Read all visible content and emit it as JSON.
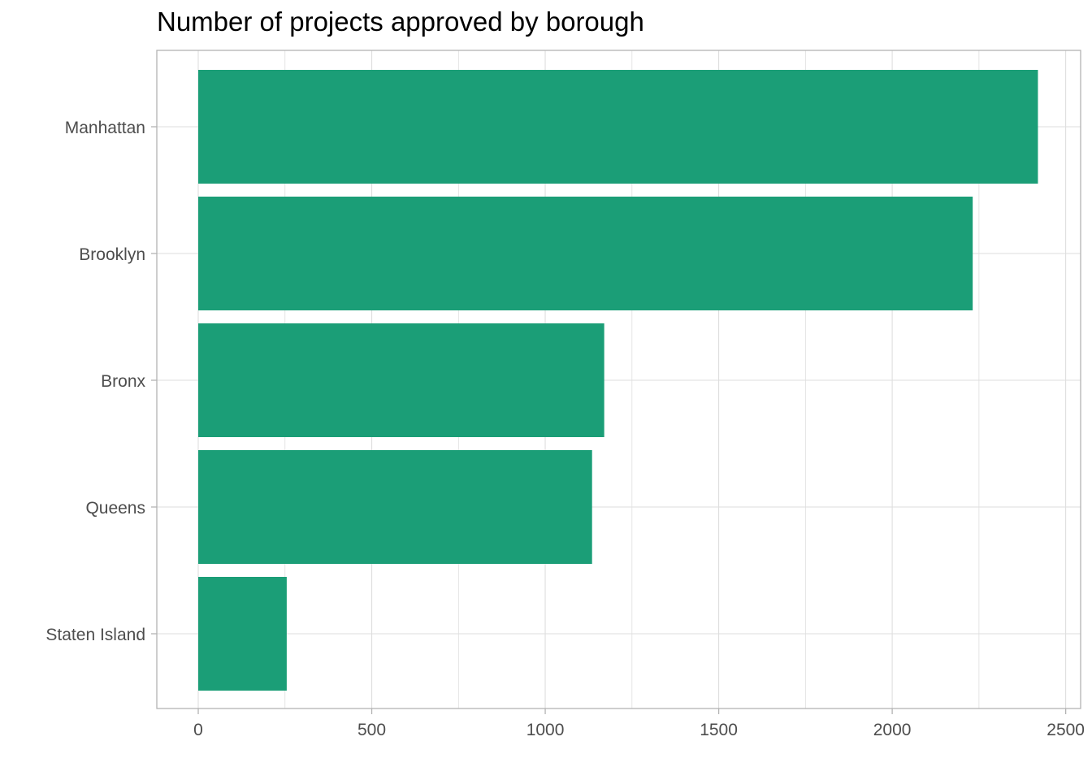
{
  "chart_data": {
    "type": "bar",
    "orientation": "horizontal",
    "title": "Number of projects approved by borough",
    "xlabel": "",
    "ylabel": "",
    "categories": [
      "Manhattan",
      "Brooklyn",
      "Bronx",
      "Queens",
      "Staten Island"
    ],
    "values": [
      2420,
      2232,
      1170,
      1135,
      255
    ],
    "xlim": [
      -120,
      2550
    ],
    "x_ticks": [
      0,
      500,
      1000,
      1500,
      2000,
      2500
    ],
    "x_tick_labels": [
      "0",
      "500",
      "1000",
      "1500",
      "2000",
      "2500"
    ],
    "grid": true,
    "legend": "none",
    "colors": {
      "bar": "#1b9e77",
      "grid": "#dedede",
      "axis": "#b3b3b3",
      "text": "#4d4d4d",
      "title": "#000000"
    }
  }
}
